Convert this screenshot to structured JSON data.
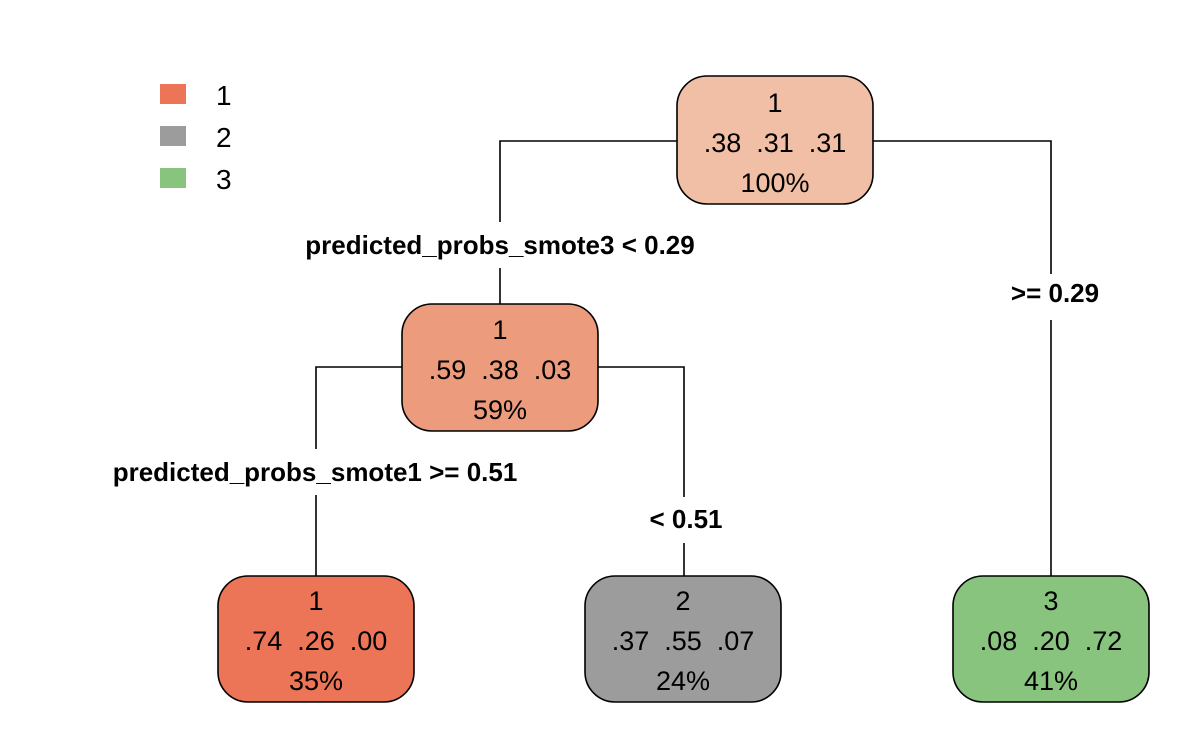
{
  "legend": {
    "items": [
      {
        "label": "1",
        "color": "#EB7556"
      },
      {
        "label": "2",
        "color": "#9C9C9C"
      },
      {
        "label": "3",
        "color": "#88C47E"
      }
    ]
  },
  "nodes": {
    "root": {
      "class": "1",
      "probs": ".38  .31  .31",
      "pct": "100%",
      "color": "#F1BFA6"
    },
    "left": {
      "class": "1",
      "probs": ".59  .38  .03",
      "pct": "59%",
      "color": "#EC9B7D"
    },
    "leaf_1": {
      "class": "1",
      "probs": ".74  .26  .00",
      "pct": "35%",
      "color": "#EB7556"
    },
    "leaf_2": {
      "class": "2",
      "probs": ".37  .55  .07",
      "pct": "24%",
      "color": "#9C9C9C"
    },
    "leaf_3": {
      "class": "3",
      "probs": ".08  .20  .72",
      "pct": "41%",
      "color": "#88C47E"
    }
  },
  "splits": {
    "root_left": "predicted_probs_smote3 < 0.29",
    "root_right": ">= 0.29",
    "left_left": "predicted_probs_smote1 >= 0.51",
    "left_right": "< 0.51"
  }
}
